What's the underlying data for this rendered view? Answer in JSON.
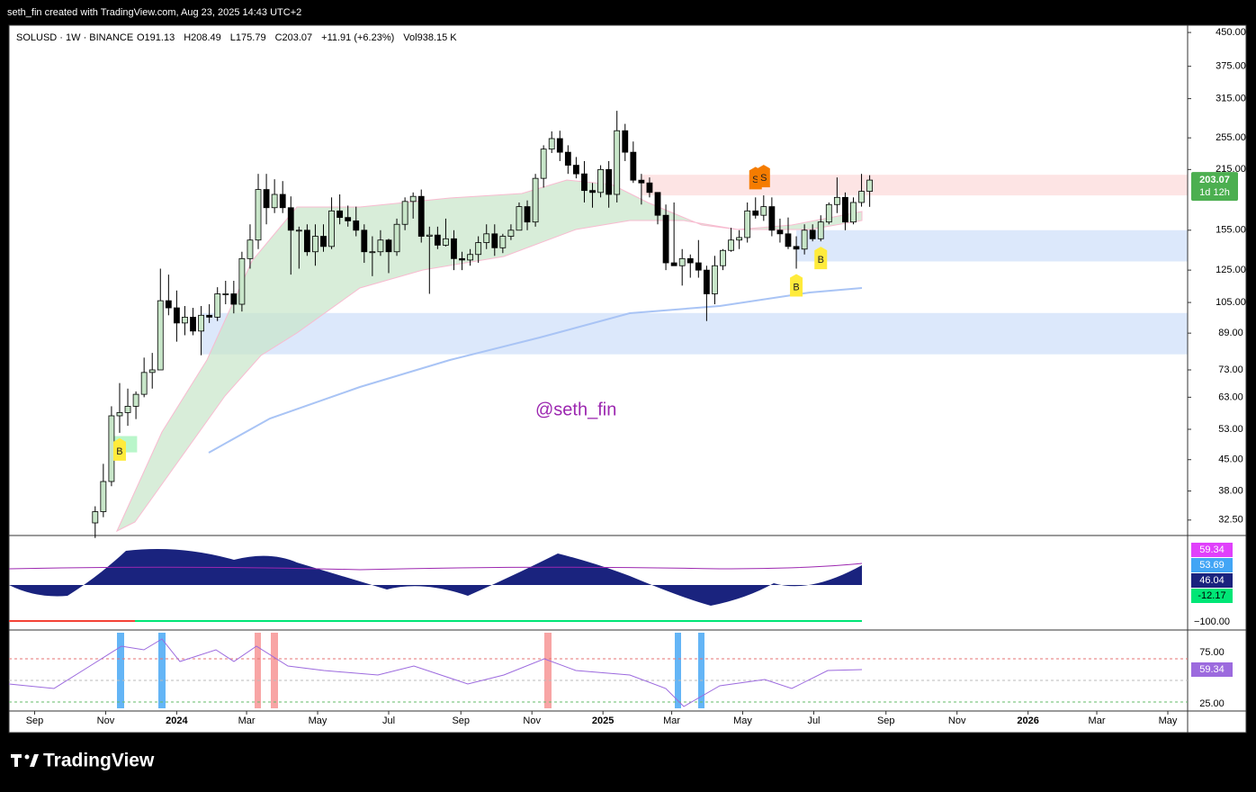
{
  "header": {
    "text": "seth_fin created with TradingView.com, Aug 23, 2025 14:43 UTC+2"
  },
  "footer": {
    "brand": "TradingView"
  },
  "chart_data": {
    "type": "candlestick",
    "symbol": "SOLUSD · 1W · BINANCE",
    "legend": [
      "O191.13",
      "H208.49",
      "L175.79",
      "C203.07",
      "+11.91 (+6.23%)",
      "Vol938.15 K"
    ],
    "watermark": "@seth_fin",
    "countdown": "1d 12h",
    "log_scale": true,
    "up_color": "#c8e6c9",
    "down_color": "#000000",
    "last_color": "#4caf50",
    "xlim": [
      "2023-08-10",
      "2026-05-18"
    ],
    "xticks": [
      {
        "value": "2023-09-01",
        "label": "Sep"
      },
      {
        "value": "2023-11-01",
        "label": "Nov"
      },
      {
        "value": "2024-01-01",
        "label": "2024"
      },
      {
        "value": "2024-03-01",
        "label": "Mar"
      },
      {
        "value": "2024-05-01",
        "label": "May"
      },
      {
        "value": "2024-07-01",
        "label": "Jul"
      },
      {
        "value": "2024-09-01",
        "label": "Sep"
      },
      {
        "value": "2024-11-01",
        "label": "Nov"
      },
      {
        "value": "2025-01-01",
        "label": "2025"
      },
      {
        "value": "2025-03-01",
        "label": "Mar"
      },
      {
        "value": "2025-05-01",
        "label": "May"
      },
      {
        "value": "2025-07-01",
        "label": "Jul"
      },
      {
        "value": "2025-09-01",
        "label": "Sep"
      },
      {
        "value": "2025-11-01",
        "label": "Nov"
      },
      {
        "value": "2026-01-01",
        "label": "2026"
      },
      {
        "value": "2026-03-01",
        "label": "Mar"
      },
      {
        "value": "2026-05-01",
        "label": "May"
      }
    ],
    "ylim": [
      29.9,
      468
    ],
    "yticks": [
      {
        "value": 450,
        "label": "450.00"
      },
      {
        "value": 375,
        "label": "375.00"
      },
      {
        "value": 315,
        "label": "315.00"
      },
      {
        "value": 255,
        "label": "255.00"
      },
      {
        "value": 215,
        "label": "215.00"
      },
      {
        "value": 155,
        "label": "155.00"
      },
      {
        "value": 125,
        "label": "125.00"
      },
      {
        "value": 105,
        "label": "105.00"
      },
      {
        "value": 89,
        "label": "89.00"
      },
      {
        "value": 73,
        "label": "73.00"
      },
      {
        "value": 63,
        "label": "63.00"
      },
      {
        "value": 53,
        "label": "53.00"
      },
      {
        "value": 45,
        "label": "45.00"
      },
      {
        "value": 38,
        "label": "38.00"
      },
      {
        "value": 32.5,
        "label": "32.50"
      }
    ],
    "x": [
      "2023-10-23",
      "2023-10-30",
      "2023-11-06",
      "2023-11-13",
      "2023-11-20",
      "2023-11-27",
      "2023-12-04",
      "2023-12-11",
      "2023-12-18",
      "2023-12-25",
      "2024-01-01",
      "2024-01-08",
      "2024-01-15",
      "2024-01-22",
      "2024-01-29",
      "2024-02-05",
      "2024-02-12",
      "2024-02-19",
      "2024-02-26",
      "2024-03-04",
      "2024-03-11",
      "2024-03-18",
      "2024-03-25",
      "2024-04-01",
      "2024-04-08",
      "2024-04-15",
      "2024-04-22",
      "2024-04-29",
      "2024-05-06",
      "2024-05-13",
      "2024-05-20",
      "2024-05-27",
      "2024-06-03",
      "2024-06-10",
      "2024-06-17",
      "2024-06-24",
      "2024-07-01",
      "2024-07-08",
      "2024-07-15",
      "2024-07-22",
      "2024-07-29",
      "2024-08-05",
      "2024-08-12",
      "2024-08-19",
      "2024-08-26",
      "2024-09-02",
      "2024-09-09",
      "2024-09-16",
      "2024-09-23",
      "2024-09-30",
      "2024-10-07",
      "2024-10-14",
      "2024-10-21",
      "2024-10-28",
      "2024-11-04",
      "2024-11-11",
      "2024-11-18",
      "2024-11-25",
      "2024-12-02",
      "2024-12-09",
      "2024-12-16",
      "2024-12-23",
      "2024-12-30",
      "2025-01-06",
      "2025-01-13",
      "2025-01-20",
      "2025-01-27",
      "2025-02-03",
      "2025-02-10",
      "2025-02-17",
      "2025-02-24",
      "2025-03-03",
      "2025-03-10",
      "2025-03-17",
      "2025-03-24",
      "2025-03-31",
      "2025-04-07",
      "2025-04-14",
      "2025-04-21",
      "2025-04-28",
      "2025-05-05",
      "2025-05-12",
      "2025-05-19",
      "2025-05-26",
      "2025-06-02",
      "2025-06-09",
      "2025-06-16",
      "2025-06-23",
      "2025-06-30",
      "2025-07-07",
      "2025-07-14",
      "2025-07-21",
      "2025-07-28",
      "2025-08-04",
      "2025-08-11",
      "2025-08-18"
    ],
    "open": [
      32,
      34,
      40,
      57,
      58,
      60,
      64,
      72,
      73,
      106,
      102,
      94,
      97,
      90,
      98,
      97,
      110,
      110,
      104,
      133,
      147,
      193,
      175,
      188,
      175,
      155,
      155,
      138,
      150,
      142,
      172,
      166,
      163,
      155,
      138,
      138,
      147,
      138,
      160,
      181,
      186,
      150,
      151,
      143,
      148,
      133,
      132,
      136,
      145,
      152,
      141,
      150,
      155,
      176,
      162,
      205,
      240,
      254,
      236,
      220,
      210,
      192,
      190,
      215,
      188,
      265,
      236,
      203,
      200,
      190,
      168,
      130,
      128,
      133,
      130,
      125,
      110,
      128,
      139,
      147,
      149,
      172,
      168,
      176,
      155,
      152,
      142,
      140,
      155,
      148,
      162,
      178,
      185,
      162,
      180,
      191.13
    ],
    "high": [
      35,
      44,
      60,
      68,
      66,
      65,
      78,
      80,
      126,
      122,
      112,
      103,
      102,
      103,
      104,
      114,
      118,
      118,
      138,
      160,
      210,
      210,
      204,
      202,
      186,
      158,
      160,
      160,
      160,
      185,
      188,
      177,
      176,
      160,
      150,
      155,
      148,
      165,
      185,
      190,
      193,
      158,
      158,
      165,
      155,
      138,
      140,
      150,
      160,
      160,
      152,
      160,
      180,
      182,
      210,
      245,
      264,
      265,
      245,
      230,
      225,
      200,
      220,
      225,
      295,
      275,
      250,
      210,
      206,
      190,
      178,
      180,
      140,
      136,
      147,
      128,
      135,
      140,
      157,
      155,
      180,
      185,
      187,
      185,
      165,
      166,
      150,
      160,
      160,
      168,
      180,
      206,
      190,
      185,
      210,
      208.49
    ],
    "low": [
      29.5,
      33,
      39,
      52,
      54,
      56,
      63,
      66,
      73,
      98,
      85,
      88,
      88,
      79,
      94,
      95,
      104,
      99,
      100,
      126,
      140,
      160,
      170,
      170,
      122,
      126,
      135,
      128,
      138,
      140,
      160,
      158,
      150,
      130,
      121,
      135,
      123,
      135,
      155,
      165,
      145,
      110,
      140,
      142,
      125,
      125,
      128,
      130,
      140,
      135,
      137,
      147,
      155,
      155,
      158,
      195,
      235,
      225,
      210,
      205,
      180,
      175,
      185,
      175,
      180,
      225,
      200,
      178,
      185,
      160,
      125,
      128,
      115,
      120,
      120,
      95,
      104,
      125,
      138,
      140,
      145,
      165,
      163,
      150,
      145,
      140,
      126,
      136,
      146,
      146,
      160,
      170,
      155,
      160,
      176,
      175.79
    ],
    "close": [
      34,
      40,
      57,
      58,
      60,
      64,
      72,
      73,
      106,
      102,
      94,
      97,
      90,
      98,
      97,
      110,
      110,
      104,
      133,
      147,
      193,
      175,
      188,
      175,
      155,
      155,
      138,
      150,
      142,
      172,
      166,
      163,
      155,
      138,
      138,
      147,
      138,
      160,
      181,
      186,
      150,
      151,
      143,
      148,
      133,
      132,
      136,
      145,
      152,
      141,
      150,
      155,
      176,
      162,
      205,
      240,
      254,
      236,
      220,
      210,
      192,
      190,
      215,
      188,
      265,
      236,
      203,
      200,
      190,
      168,
      130,
      128,
      133,
      130,
      125,
      110,
      128,
      139,
      147,
      149,
      172,
      168,
      176,
      155,
      152,
      142,
      140,
      155,
      148,
      162,
      178,
      185,
      162,
      180,
      191.13,
      203.07
    ],
    "zones": [
      {
        "from": 187,
        "to": 209,
        "start": "2025-02-03",
        "color": "#fde4e4"
      },
      {
        "from": 131,
        "to": 155,
        "start": "2025-06-16",
        "color": "#dce8fb"
      },
      {
        "from": 79.4,
        "to": 99.2,
        "start": "2024-01-22",
        "color": "#dce8fb"
      },
      {
        "from": 46.8,
        "to": 51.1,
        "start": "2023-11-05",
        "end": "2023-11-28",
        "color": "#b9f6ca"
      }
    ],
    "signals": [
      {
        "label": "B",
        "date": "2023-11-13",
        "side": "below",
        "color": "#ffeb3b"
      },
      {
        "label": "S",
        "date": "2025-05-12",
        "side": "above",
        "color": "#f57c00"
      },
      {
        "label": "S",
        "date": "2025-05-19",
        "side": "above",
        "color": "#f57c00"
      },
      {
        "label": "B",
        "date": "2025-06-16",
        "side": "below",
        "color": "#ffeb3b"
      },
      {
        "label": "B",
        "date": "2025-07-07",
        "side": "below",
        "color": "#ffeb3b"
      }
    ]
  },
  "oscillator": {
    "labels": [
      {
        "text": "59.34",
        "color": "#e040fb"
      },
      {
        "text": "53.69",
        "color": "#42a5f5"
      },
      {
        "text": "46.04",
        "color": "#1a237e"
      },
      {
        "text": "-12.17",
        "color": "#00e676"
      },
      {
        "text": "−100.00",
        "color": ""
      }
    ]
  },
  "rsi": {
    "labels": [
      {
        "text": "75.00",
        "color": ""
      },
      {
        "text": "59.34",
        "color": "#9c6ade"
      },
      {
        "text": "25.00",
        "color": ""
      }
    ]
  }
}
